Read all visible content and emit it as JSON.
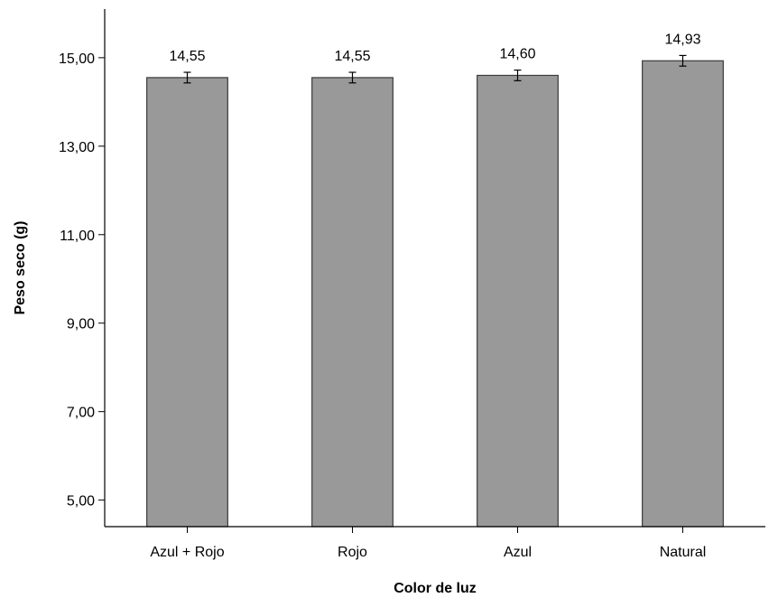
{
  "chart_data": {
    "type": "bar",
    "categories": [
      "Azul + Rojo",
      "Rojo",
      "Azul",
      "Natural"
    ],
    "values": [
      14.55,
      14.55,
      14.6,
      14.93
    ],
    "value_labels": [
      "14,55",
      "14,55",
      "14,60",
      "14,93"
    ],
    "error_low": [
      14.43,
      14.43,
      14.48,
      14.81
    ],
    "error_high": [
      14.67,
      14.67,
      14.72,
      15.05
    ],
    "xlabel": "Color de luz",
    "ylabel": "Peso seco (g)",
    "ylim": [
      4.4,
      16.1
    ],
    "yticks": [
      5,
      7,
      9,
      11,
      13,
      15
    ],
    "ytick_labels": [
      "5,00",
      "7,00",
      "9,00",
      "11,00",
      "13,00",
      "15,00"
    ],
    "grid": false,
    "legend": "none",
    "bar_color": "#999999"
  }
}
